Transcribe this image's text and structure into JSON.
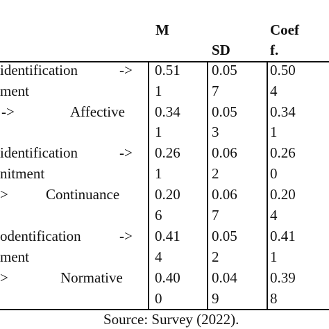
{
  "header": {
    "m": "M",
    "sd": "SD",
    "coef_line1": "Coef",
    "coef_line2": "f."
  },
  "rows": [
    {
      "path_line1_left": "identification",
      "path_line1_arrow": "->",
      "path_line2": "ment",
      "m": [
        "0.51",
        "1"
      ],
      "sd": [
        "0.05",
        "7"
      ],
      "coef": [
        "0.50",
        "4"
      ]
    },
    {
      "path_line1_arrow": "->",
      "path_line1_right": "Affective",
      "m": [
        "0.34",
        "1"
      ],
      "sd": [
        "0.05",
        "3"
      ],
      "coef": [
        "0.34",
        "1"
      ]
    },
    {
      "path_line1_left": "identification",
      "path_line1_arrow": "->",
      "path_line2": "nitment",
      "m": [
        "0.26",
        "1"
      ],
      "sd": [
        "0.06",
        "2"
      ],
      "coef": [
        "0.26",
        "0"
      ]
    },
    {
      "path_line1_arrow": ">",
      "path_line1_right": "Continuance",
      "m": [
        "0.20",
        "6"
      ],
      "sd": [
        "0.06",
        "7"
      ],
      "coef": [
        "0.20",
        "4"
      ]
    },
    {
      "path_line1_left": "odentification",
      "path_line1_arrow": "->",
      "path_line2": "ment",
      "m": [
        "0.41",
        "4"
      ],
      "sd": [
        "0.05",
        "2"
      ],
      "coef": [
        "0.41",
        "1"
      ]
    },
    {
      "path_line1_arrow": ">",
      "path_line1_right": "Normative",
      "m": [
        "0.40",
        "0"
      ],
      "sd": [
        "0.04",
        "9"
      ],
      "coef": [
        "0.39",
        "8"
      ]
    }
  ],
  "source": "Source: Survey (2022)."
}
